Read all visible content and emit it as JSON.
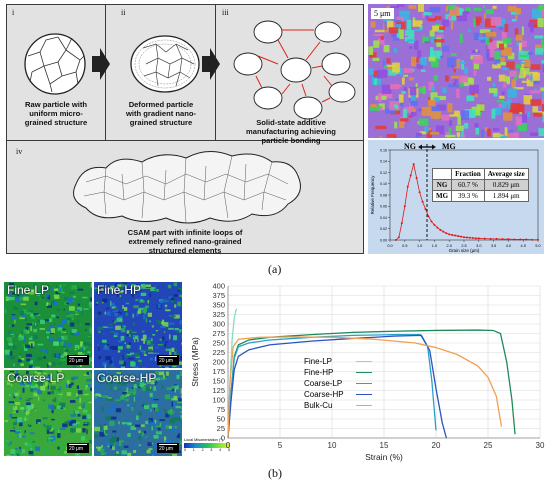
{
  "figure": {
    "panel_a_label": "(a)",
    "panel_b_label": "(b)"
  },
  "schematic": {
    "steps": [
      {
        "roman": "i",
        "caption": [
          "Raw particle with",
          "uniform micro-",
          "grained structure"
        ]
      },
      {
        "roman": "ii",
        "caption": [
          "Deformed particle",
          "with gradient nano-",
          "grained structure"
        ]
      },
      {
        "roman": "iii",
        "caption": [
          "Solid-state additive",
          "manufacturing achieving",
          "particle bonding"
        ]
      },
      {
        "roman": "iv",
        "caption": [
          "CSAM part with infinite loops of",
          "extremely refined nano-grained",
          "structured elements"
        ]
      }
    ]
  },
  "ebsd_top": {
    "scale_label": "5 μm"
  },
  "grain_chart": {
    "chart_data": {
      "type": "line",
      "xlabel": "Grain size (μm)",
      "ylabel": "Relative Frequency",
      "xlim": [
        0,
        5
      ],
      "ylim": [
        0,
        0.16
      ],
      "xticks": [
        "0.0",
        "0.5",
        "1.0",
        "1.5",
        "2.0",
        "2.5",
        "3.0",
        "3.5",
        "4.0",
        "4.5",
        "5.0"
      ],
      "yticks": [
        "0.00",
        "0.02",
        "0.04",
        "0.06",
        "0.08",
        "0.10",
        "0.12",
        "0.14",
        "0.16"
      ],
      "threshold_x": 1.25,
      "annotations": {
        "left": "NG",
        "right": "MG"
      },
      "series": [
        {
          "x": [
            0.2,
            0.3,
            0.4,
            0.5,
            0.6,
            0.7,
            0.8,
            0.9,
            1.0,
            1.1,
            1.2,
            1.3,
            1.4,
            1.5,
            1.6,
            1.7,
            1.8,
            1.9,
            2.0,
            2.1,
            2.2,
            2.3,
            2.4,
            2.5,
            2.6,
            2.7,
            2.8,
            2.9,
            3.0,
            3.2,
            3.4,
            3.6,
            3.8,
            4.0,
            4.2,
            4.4,
            4.6,
            4.8,
            5.0
          ],
          "y": [
            0.0,
            0.005,
            0.03,
            0.06,
            0.095,
            0.115,
            0.135,
            0.11,
            0.085,
            0.068,
            0.055,
            0.042,
            0.033,
            0.027,
            0.022,
            0.018,
            0.015,
            0.012,
            0.01,
            0.009,
            0.008,
            0.007,
            0.006,
            0.005,
            0.0045,
            0.004,
            0.0035,
            0.003,
            0.003,
            0.0025,
            0.002,
            0.002,
            0.0015,
            0.0015,
            0.001,
            0.001,
            0.001,
            0.0005,
            0.0005
          ]
        }
      ],
      "table": {
        "headers": [
          "",
          "Fraction",
          "Average size"
        ],
        "rows": [
          [
            "NG",
            "60.7 %",
            "0.829 μm"
          ],
          [
            "MG",
            "39.3 %",
            "1.894 μm"
          ]
        ]
      }
    }
  },
  "ebsd_tiles": [
    {
      "label": "Fine-LP",
      "scale": "20 μm",
      "color": "#1b8f3a"
    },
    {
      "label": "Fine-HP",
      "scale": "20 μm",
      "color": "#2246b8"
    },
    {
      "label": "Coarse-LP",
      "scale": "20 μm",
      "color": "#3aa83a"
    },
    {
      "label": "Coarse-HP",
      "scale": "20 μm",
      "color": "#2c6e9e"
    }
  ],
  "misorientation_legend": {
    "title": "Local Misorientation (°)",
    "ticks": [
      "0",
      "1",
      "2",
      "3",
      "4",
      "5"
    ]
  },
  "stress_chart": {
    "chart_data": {
      "type": "line",
      "xlabel": "Strain (%)",
      "ylabel": "Stress (MPa)",
      "xlim": [
        0,
        30
      ],
      "ylim": [
        0,
        400
      ],
      "xticks": [
        "0",
        "5",
        "10",
        "15",
        "20",
        "25",
        "30"
      ],
      "yticks": [
        "0",
        "25",
        "50",
        "75",
        "100",
        "125",
        "150",
        "175",
        "200",
        "225",
        "250",
        "275",
        "300",
        "325",
        "350",
        "375",
        "400"
      ],
      "legend_position": "center-left",
      "series": [
        {
          "name": "Fine-LP",
          "color": "#7fe0c0",
          "x": [
            0,
            0.2,
            0.4,
            0.6,
            0.75,
            0.85
          ],
          "y": [
            0,
            150,
            260,
            315,
            335,
            340
          ]
        },
        {
          "name": "Fine-HP",
          "color": "#1f8a5a",
          "x": [
            0,
            0.3,
            0.6,
            1.0,
            2,
            4,
            8,
            12,
            16,
            20,
            24,
            25.5,
            26.2,
            26.8,
            27.3,
            27.6
          ],
          "y": [
            0,
            120,
            215,
            245,
            258,
            265,
            272,
            278,
            281,
            283,
            284,
            283,
            275,
            200,
            100,
            10
          ]
        },
        {
          "name": "Coarse-LP",
          "color": "#2aa0c8",
          "x": [
            0,
            0.3,
            0.6,
            1.0,
            2,
            4,
            8,
            12,
            16,
            18.5,
            19.2,
            19.6,
            20.0
          ],
          "y": [
            0,
            120,
            210,
            240,
            250,
            258,
            265,
            270,
            272,
            272,
            240,
            150,
            20
          ]
        },
        {
          "name": "Coarse-HP",
          "color": "#2a55c0",
          "x": [
            0,
            0.3,
            0.6,
            1.0,
            2,
            4,
            8,
            12,
            16,
            18.6,
            19.4,
            20.0,
            20.6,
            21.0
          ],
          "y": [
            0,
            100,
            180,
            215,
            232,
            245,
            255,
            262,
            268,
            270,
            230,
            130,
            40,
            0
          ]
        },
        {
          "name": "Bulk-Cu",
          "color": "#f0a050",
          "x": [
            0,
            0.2,
            0.5,
            1,
            3,
            6,
            10,
            14,
            18,
            20,
            22,
            24,
            25,
            25.8,
            26.3
          ],
          "y": [
            0,
            150,
            240,
            260,
            265,
            266,
            265,
            260,
            250,
            238,
            220,
            190,
            160,
            110,
            30
          ]
        }
      ]
    }
  }
}
